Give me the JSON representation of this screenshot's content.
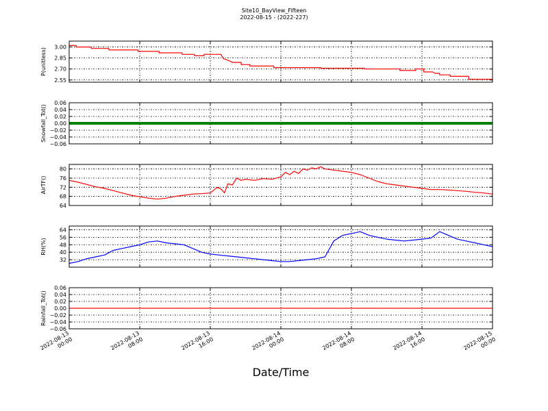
{
  "title": "Site10_BayView_Fifteen",
  "subtitle": "2022-08-15 - (2022-227)",
  "chart_data": {
    "type": "line",
    "xlabel": "Date/Time",
    "x_range": [
      "2022-08-13 00:00",
      "2022-08-15 00:00"
    ],
    "x_ticks": [
      "2022-08-13\n00:00",
      "2022-08-13\n08:00",
      "2022-08-13\n16:00",
      "2022-08-14\n00:00",
      "2022-08-14\n08:00",
      "2022-08-14\n16:00",
      "2022-08-15\n00:00"
    ],
    "x_tick_hours": [
      0,
      8,
      16,
      24,
      32,
      40,
      48
    ],
    "grid": true,
    "panels": [
      {
        "ylabel": "P(unitless)",
        "ylim": [
          2.52,
          3.08
        ],
        "yticks": [
          "3.00",
          "2.85",
          "2.70",
          "2.55"
        ],
        "ytick_values": [
          3.0,
          2.85,
          2.7,
          2.55
        ],
        "series": [
          {
            "color": "#ff0000",
            "step": true,
            "points": [
              [
                0,
                3.02
              ],
              [
                0.8,
                3.02
              ],
              [
                0.8,
                3.0
              ],
              [
                2.5,
                3.0
              ],
              [
                2.5,
                2.98
              ],
              [
                4.5,
                2.98
              ],
              [
                4.5,
                2.96
              ],
              [
                7.8,
                2.96
              ],
              [
                7.8,
                2.94
              ],
              [
                10.2,
                2.94
              ],
              [
                10.2,
                2.92
              ],
              [
                12.8,
                2.92
              ],
              [
                12.8,
                2.9
              ],
              [
                14.2,
                2.9
              ],
              [
                14.2,
                2.88
              ],
              [
                15.3,
                2.88
              ],
              [
                15.3,
                2.9
              ],
              [
                17.2,
                2.9
              ],
              [
                17.5,
                2.84
              ],
              [
                18.2,
                2.81
              ],
              [
                18.5,
                2.79
              ],
              [
                19.5,
                2.79
              ],
              [
                19.5,
                2.76
              ],
              [
                20.5,
                2.76
              ],
              [
                20.5,
                2.74
              ],
              [
                23.2,
                2.74
              ],
              [
                23.2,
                2.72
              ],
              [
                28.5,
                2.72
              ],
              [
                28.5,
                2.71
              ],
              [
                33.5,
                2.71
              ],
              [
                33.5,
                2.7
              ],
              [
                37.5,
                2.7
              ],
              [
                37.5,
                2.68
              ],
              [
                39.3,
                2.68
              ],
              [
                39.3,
                2.7
              ],
              [
                40.2,
                2.7
              ],
              [
                40.2,
                2.66
              ],
              [
                41.2,
                2.66
              ],
              [
                41.5,
                2.64
              ],
              [
                42.0,
                2.64
              ],
              [
                42.0,
                2.62
              ],
              [
                43.2,
                2.62
              ],
              [
                43.2,
                2.6
              ],
              [
                45.3,
                2.6
              ],
              [
                45.3,
                2.56
              ],
              [
                48,
                2.56
              ]
            ]
          }
        ]
      },
      {
        "ylabel": "Snowfall_Tot()",
        "ylim": [
          -0.06,
          0.06
        ],
        "yticks": [
          "0.06",
          "0.04",
          "0.02",
          "0.00",
          "−0.02",
          "−0.04",
          "−0.06"
        ],
        "ytick_values": [
          0.06,
          0.04,
          0.02,
          0.0,
          -0.02,
          -0.04,
          -0.06
        ],
        "series": [
          {
            "color": "#008000",
            "thick": true,
            "points": [
              [
                0,
                0
              ],
              [
                48,
                0
              ]
            ]
          }
        ]
      },
      {
        "ylabel": "AirTF()",
        "ylim": [
          64,
          82
        ],
        "yticks": [
          "80",
          "76",
          "72",
          "68",
          "64"
        ],
        "ytick_values": [
          80,
          76,
          72,
          68,
          64
        ],
        "series": [
          {
            "color": "#ff0000",
            "points": [
              [
                0,
                75.0
              ],
              [
                1,
                74.2
              ],
              [
                2,
                73.2
              ],
              [
                3,
                72.2
              ],
              [
                4,
                71.5
              ],
              [
                5,
                70.5
              ],
              [
                6,
                69.5
              ],
              [
                7,
                68.5
              ],
              [
                8,
                67.8
              ],
              [
                9,
                67.2
              ],
              [
                10,
                66.8
              ],
              [
                11,
                67.2
              ],
              [
                12,
                68.0
              ],
              [
                13,
                68.5
              ],
              [
                14,
                69.0
              ],
              [
                15,
                69.2
              ],
              [
                16,
                69.5
              ],
              [
                16.8,
                72.0
              ],
              [
                17.3,
                71.0
              ],
              [
                17.6,
                69.5
              ],
              [
                18.0,
                73.5
              ],
              [
                18.5,
                73.0
              ],
              [
                19.0,
                76.0
              ],
              [
                19.5,
                75.0
              ],
              [
                20,
                75.5
              ],
              [
                21,
                75.0
              ],
              [
                22,
                75.8
              ],
              [
                23,
                75.5
              ],
              [
                24,
                76.5
              ],
              [
                24.5,
                78.5
              ],
              [
                25,
                77.5
              ],
              [
                25.5,
                79.0
              ],
              [
                26,
                78.0
              ],
              [
                26.5,
                80.0
              ],
              [
                27,
                79.5
              ],
              [
                27.5,
                80.5
              ],
              [
                28,
                80.0
              ],
              [
                28.5,
                81.0
              ],
              [
                29,
                80.0
              ],
              [
                30,
                79.5
              ],
              [
                31,
                79.0
              ],
              [
                32,
                78.5
              ],
              [
                33,
                77.5
              ],
              [
                34,
                76.0
              ],
              [
                35,
                74.5
              ],
              [
                36,
                73.5
              ],
              [
                37,
                73.0
              ],
              [
                38,
                72.5
              ],
              [
                39,
                72.0
              ],
              [
                40,
                71.5
              ],
              [
                41,
                71.0
              ],
              [
                42,
                71.0
              ],
              [
                43,
                70.8
              ],
              [
                44,
                70.5
              ],
              [
                45,
                70.2
              ],
              [
                46,
                69.8
              ],
              [
                47,
                69.5
              ],
              [
                48,
                69.0
              ]
            ]
          }
        ]
      },
      {
        "ylabel": "RH(%)",
        "ylim": [
          24,
          68
        ],
        "yticks": [
          "64",
          "56",
          "48",
          "40",
          "32"
        ],
        "ytick_values": [
          64,
          56,
          48,
          40,
          32
        ],
        "series": [
          {
            "color": "#0000ff",
            "points": [
              [
                0,
                28
              ],
              [
                1,
                30
              ],
              [
                2,
                33
              ],
              [
                3,
                35
              ],
              [
                4,
                37
              ],
              [
                5,
                42
              ],
              [
                6,
                44
              ],
              [
                7,
                46
              ],
              [
                8,
                48
              ],
              [
                9,
                51
              ],
              [
                10,
                52
              ],
              [
                11,
                50
              ],
              [
                12,
                49
              ],
              [
                13,
                48
              ],
              [
                14,
                44
              ],
              [
                15,
                40
              ],
              [
                16,
                38
              ],
              [
                17,
                37
              ],
              [
                18,
                36
              ],
              [
                19,
                35
              ],
              [
                20,
                34
              ],
              [
                21,
                33
              ],
              [
                22,
                32
              ],
              [
                23,
                31
              ],
              [
                24,
                30
              ],
              [
                25,
                30
              ],
              [
                26,
                31
              ],
              [
                27,
                32
              ],
              [
                28,
                33
              ],
              [
                29,
                35
              ],
              [
                30,
                52
              ],
              [
                31,
                58
              ],
              [
                32,
                60
              ],
              [
                33,
                62
              ],
              [
                34,
                58
              ],
              [
                35,
                56
              ],
              [
                36,
                54
              ],
              [
                37,
                53
              ],
              [
                38,
                52
              ],
              [
                39,
                53
              ],
              [
                40,
                54
              ],
              [
                41,
                55
              ],
              [
                42,
                62
              ],
              [
                43,
                58
              ],
              [
                44,
                54
              ],
              [
                45,
                52
              ],
              [
                46,
                50
              ],
              [
                47,
                48
              ],
              [
                48,
                46
              ]
            ]
          }
        ]
      },
      {
        "ylabel": "Rainfall_Tot()",
        "ylim": [
          -0.06,
          0.06
        ],
        "yticks": [
          "0.06",
          "0.04",
          "0.02",
          "0.00",
          "−0.02",
          "−0.04",
          "−0.06"
        ],
        "ytick_values": [
          0.06,
          0.04,
          0.02,
          0.0,
          -0.02,
          -0.04,
          -0.06
        ],
        "series": [
          {
            "color": "#ff0000",
            "points": [
              [
                0,
                0
              ],
              [
                48,
                0
              ]
            ]
          }
        ]
      }
    ]
  }
}
